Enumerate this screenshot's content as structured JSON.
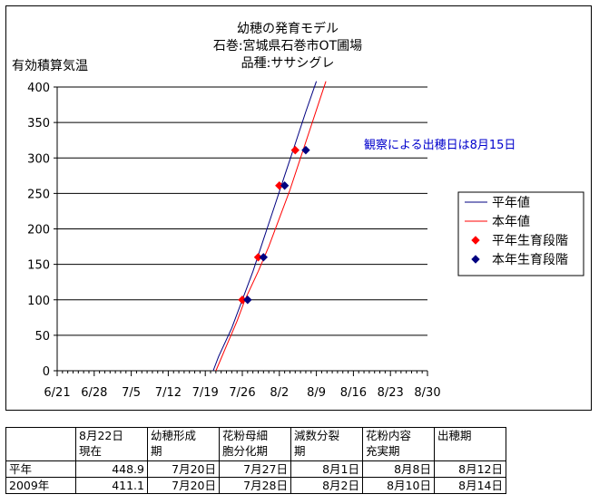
{
  "chart_data": {
    "type": "line",
    "title": [
      "幼穂の発育モデル",
      "石巻:宮城県石巻市OT圃場",
      "品種:ササシグレ"
    ],
    "ylabel": "有効積算気温",
    "ylim": [
      0,
      400
    ],
    "yticks": [
      "0",
      "50",
      "100",
      "150",
      "200",
      "250",
      "300",
      "350",
      "400"
    ],
    "xticks": [
      "6/21",
      "6/28",
      "7/5",
      "7/12",
      "7/19",
      "7/26",
      "8/2",
      "8/9",
      "8/16",
      "8/23",
      "8/30"
    ],
    "grid": "horizontal",
    "legend_position": "right",
    "series": [
      {
        "name": "平年値",
        "kind": "line",
        "color": "#000080",
        "points": [
          [
            29.5,
            0
          ],
          [
            30.5,
            20
          ],
          [
            33,
            60
          ],
          [
            35,
            100
          ],
          [
            37,
            140
          ],
          [
            39,
            185
          ],
          [
            41,
            230
          ],
          [
            43,
            275
          ],
          [
            45,
            320
          ],
          [
            47,
            365
          ],
          [
            49,
            408
          ]
        ]
      },
      {
        "name": "本年値",
        "kind": "line",
        "color": "#ff0000",
        "points": [
          [
            30,
            0
          ],
          [
            32,
            35
          ],
          [
            34,
            70
          ],
          [
            35.5,
            100
          ],
          [
            38,
            140
          ],
          [
            40,
            175
          ],
          [
            42,
            215
          ],
          [
            44,
            255
          ],
          [
            46,
            300
          ],
          [
            48,
            345
          ],
          [
            50,
            390
          ],
          [
            50.8,
            408
          ]
        ]
      },
      {
        "name": "平年生育段階",
        "kind": "marker",
        "color": "#ff0000",
        "points": [
          [
            35,
            100
          ],
          [
            38,
            160
          ],
          [
            42,
            261
          ],
          [
            45,
            311
          ]
        ]
      },
      {
        "name": "本年生育段階",
        "kind": "marker",
        "color": "#000080",
        "points": [
          [
            36,
            100
          ],
          [
            39,
            160
          ],
          [
            43,
            261
          ],
          [
            47,
            311
          ]
        ]
      }
    ],
    "annotation": "観察による出穂日は8月15日"
  },
  "table": {
    "headers": [
      [
        "",
        ""
      ],
      [
        "8月22日",
        "現在"
      ],
      [
        "幼穂形成",
        "期"
      ],
      [
        "花粉母細",
        "胞分化期"
      ],
      [
        "減数分裂",
        "期"
      ],
      [
        "花粉内容",
        "充実期"
      ],
      [
        "出穂期",
        ""
      ]
    ],
    "rows": [
      [
        "平年",
        "448.9",
        "7月20日",
        "7月27日",
        "8月1日",
        "8月8日",
        "8月12日"
      ],
      [
        "2009年",
        "411.1",
        "7月20日",
        "7月28日",
        "8月2日",
        "8月10日",
        "8月14日"
      ]
    ]
  }
}
